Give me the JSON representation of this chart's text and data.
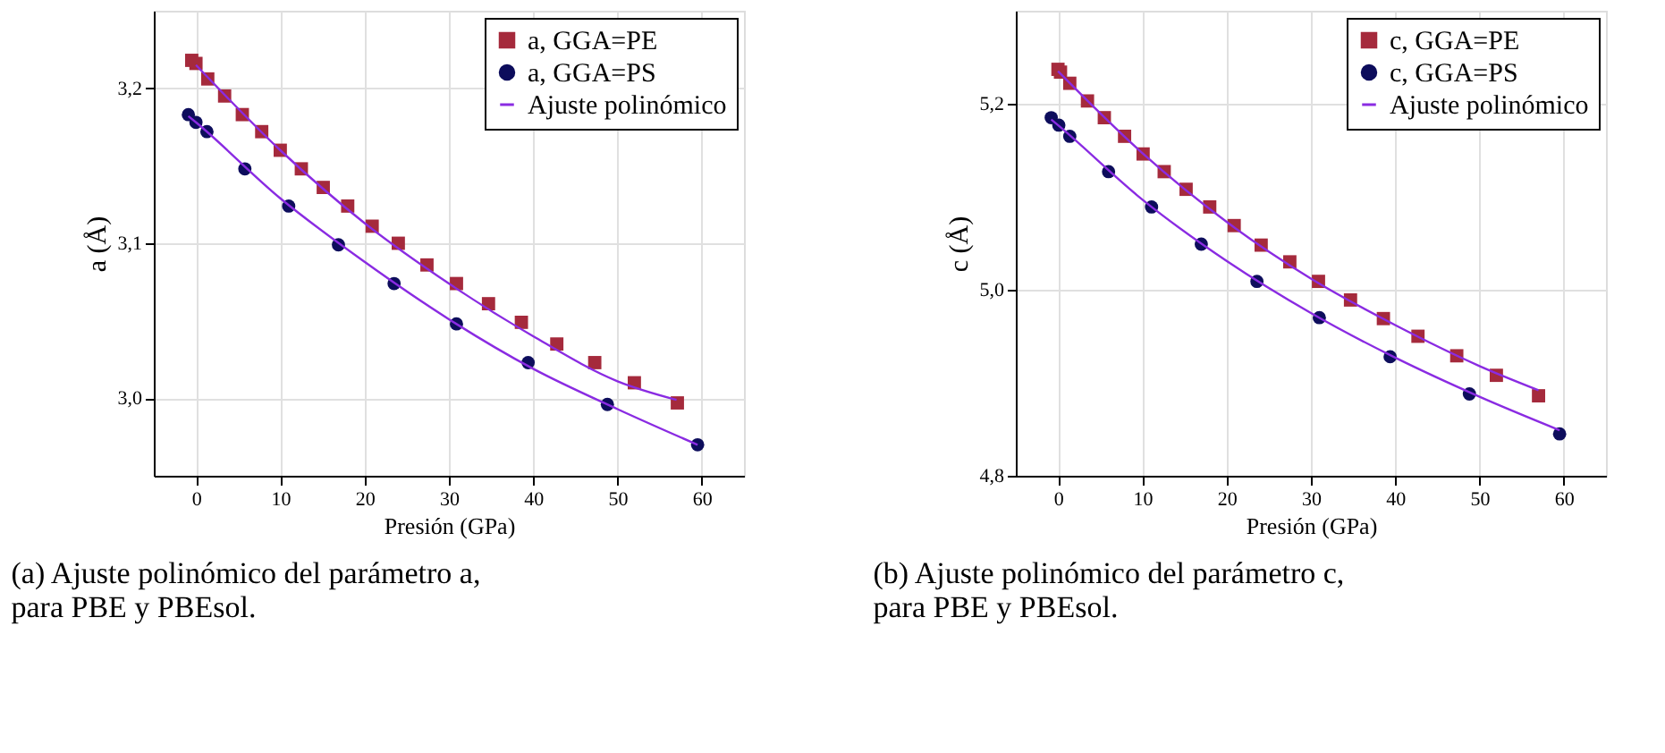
{
  "chart_data": [
    {
      "type": "scatter",
      "xlabel": "Presión (GPa)",
      "ylabel": "a (Å)",
      "xlim": [
        -5,
        65
      ],
      "ylim": [
        2.95,
        3.25
      ],
      "xticks": [
        0,
        10,
        20,
        30,
        40,
        50,
        60
      ],
      "yticks": [
        {
          "value": 3.0,
          "label": "3,0"
        },
        {
          "value": 3.1,
          "label": "3,1"
        },
        {
          "value": 3.2,
          "label": "3,2"
        }
      ],
      "grid": true,
      "legend": "top right",
      "annotations": [
        "(a) Ajuste polinómico del parámetro a, para PBE y PBEsol."
      ],
      "series": [
        {
          "name": "a, GGA=PE",
          "marker": "square",
          "color": "#a52a3c",
          "x": [
            -0.5,
            0,
            1.4,
            3.4,
            5.5,
            7.8,
            10.0,
            12.5,
            15.1,
            18.0,
            20.9,
            24.0,
            27.4,
            30.9,
            34.7,
            38.6,
            42.8,
            47.3,
            52.0,
            57.1
          ],
          "values": [
            3.218,
            3.216,
            3.206,
            3.195,
            3.183,
            3.172,
            3.16,
            3.148,
            3.136,
            3.124,
            3.111,
            3.1,
            3.086,
            3.074,
            3.061,
            3.049,
            3.035,
            3.023,
            3.01,
            2.997
          ]
        },
        {
          "name": "a, GGA=PS",
          "marker": "circle",
          "color": "#0d0d5c",
          "x": [
            -0.9,
            0,
            1.3,
            5.8,
            11.0,
            16.9,
            23.5,
            30.9,
            39.4,
            48.8,
            59.5
          ],
          "values": [
            3.183,
            3.178,
            3.172,
            3.148,
            3.124,
            3.099,
            3.074,
            3.048,
            3.023,
            2.996,
            2.97
          ]
        },
        {
          "name": "Ajuste polinómico",
          "type": "line",
          "line_style": "solid",
          "color": "#8a2be2",
          "x": [
            0,
            10,
            20,
            30,
            40,
            50,
            57
          ],
          "values": [
            3.215,
            3.16,
            3.113,
            3.074,
            3.04,
            3.011,
            2.999
          ]
        },
        {
          "type": "line",
          "line_style": "solid",
          "color": "#8a2be2",
          "x": [
            -0.9,
            0,
            10,
            20,
            30,
            40,
            50,
            59.5
          ],
          "values": [
            3.182,
            3.178,
            3.129,
            3.088,
            3.051,
            3.019,
            2.993,
            2.97
          ]
        }
      ]
    },
    {
      "type": "scatter",
      "xlabel": "Presión (GPa)",
      "ylabel": "c (Å)",
      "xlim": [
        -5,
        65
      ],
      "ylim": [
        4.8,
        5.3
      ],
      "xticks": [
        0,
        10,
        20,
        30,
        40,
        50,
        60
      ],
      "yticks": [
        {
          "value": 4.8,
          "label": "4,8"
        },
        {
          "value": 5.0,
          "label": "5,0"
        },
        {
          "value": 5.2,
          "label": "5,2"
        }
      ],
      "grid": true,
      "legend": "top right",
      "annotations": [
        "(b) Ajuste polinómico del parámetro c, para PBE y PBEsol."
      ],
      "series": [
        {
          "name": "c, GGA=PE",
          "marker": "square",
          "color": "#a52a3c",
          "x": [
            0,
            0.3,
            1.4,
            3.5,
            5.5,
            7.9,
            10.1,
            12.6,
            15.2,
            18.0,
            20.9,
            24.1,
            27.5,
            30.9,
            34.7,
            38.6,
            42.7,
            47.3,
            52.0,
            57.0
          ],
          "values": [
            5.237,
            5.234,
            5.222,
            5.203,
            5.185,
            5.165,
            5.146,
            5.127,
            5.108,
            5.089,
            5.069,
            5.048,
            5.03,
            5.009,
            4.989,
            4.969,
            4.95,
            4.929,
            4.908,
            4.886
          ]
        },
        {
          "name": "c, GGA=PS",
          "marker": "circle",
          "color": "#0d0d5c",
          "x": [
            -0.8,
            0.1,
            1.4,
            6.0,
            11.1,
            17.0,
            23.6,
            31.0,
            39.4,
            48.8,
            59.5
          ],
          "values": [
            5.185,
            5.177,
            5.165,
            5.127,
            5.089,
            5.049,
            5.009,
            4.97,
            4.928,
            4.888,
            4.845
          ]
        },
        {
          "name": "Ajuste polinómico",
          "type": "line",
          "line_style": "solid",
          "color": "#8a2be2",
          "x": [
            0,
            10,
            20,
            30,
            40,
            50,
            57
          ],
          "values": [
            5.235,
            5.147,
            5.073,
            5.012,
            4.962,
            4.918,
            4.892
          ]
        },
        {
          "type": "line",
          "line_style": "solid",
          "color": "#8a2be2",
          "x": [
            -0.8,
            0,
            10,
            20,
            30,
            40,
            50,
            59.5
          ],
          "values": [
            5.183,
            5.177,
            5.097,
            5.031,
            4.975,
            4.927,
            4.885,
            4.849
          ]
        }
      ]
    }
  ]
}
